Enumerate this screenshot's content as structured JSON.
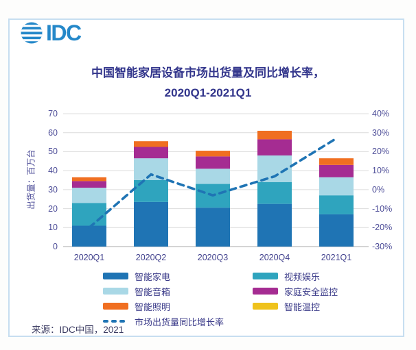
{
  "logo": {
    "text": "IDC"
  },
  "title": {
    "line1": "中国智能家居设备市场出货量及同比增长率，",
    "line2": "2020Q1-2021Q1"
  },
  "source": {
    "text": "来源：IDC中国，2021"
  },
  "chart_data": {
    "type": "bar",
    "subtype": "stacked-bars-with-line-overlay",
    "title": "中国智能家居设备市场出货量及同比增长率，2020Q1-2021Q1",
    "categories": [
      "2020Q1",
      "2020Q2",
      "2020Q3",
      "2020Q4",
      "2021Q1"
    ],
    "series": [
      {
        "name": "智能家电",
        "color": "#1F74B4",
        "values": [
          11,
          23.5,
          20.5,
          22.5,
          17
        ]
      },
      {
        "name": "视频娱乐",
        "color": "#2FA4BE",
        "values": [
          12,
          11.5,
          12.5,
          11.5,
          10
        ]
      },
      {
        "name": "智能音箱",
        "color": "#A9D8E6",
        "values": [
          8,
          11.5,
          8,
          14,
          9.5
        ]
      },
      {
        "name": "家庭安全监控",
        "color": "#A52C92",
        "values": [
          3.5,
          6,
          6.5,
          8.5,
          6.5
        ]
      },
      {
        "name": "智能照明",
        "color": "#F06F21",
        "values": [
          2,
          3,
          3,
          4.5,
          3.5
        ]
      },
      {
        "name": "智能温控",
        "color": "#EFC21C",
        "values": [
          0,
          0,
          0,
          0,
          0
        ]
      }
    ],
    "line_series": {
      "name": "市场出货量同比增长率",
      "color": "#1F74B4",
      "values_pct": [
        -20,
        8,
        -3,
        7,
        27
      ]
    },
    "left_axis": {
      "label": "出货量：百万台",
      "min": 0,
      "max": 70,
      "step": 10,
      "ticks": [
        "0",
        "10",
        "20",
        "30",
        "40",
        "50",
        "60",
        "70"
      ]
    },
    "right_axis": {
      "min": -30,
      "max": 40,
      "step": 10,
      "ticks": [
        "-30%",
        "-20%",
        "-10%",
        "0%",
        "10%",
        "20%",
        "30%",
        "40%"
      ]
    },
    "grid": true,
    "legend_position": "bottom"
  }
}
